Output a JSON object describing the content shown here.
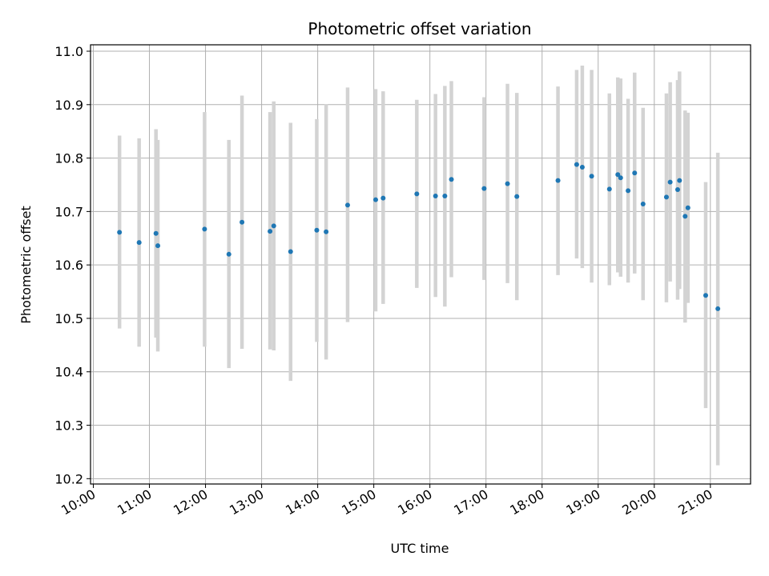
{
  "chart_data": {
    "type": "scatter",
    "title": "Photometric offset variation",
    "xlabel": "UTC time",
    "ylabel": "Photometric offset",
    "x_axis_type": "time",
    "xlim": [
      "09:57",
      "21:43"
    ],
    "ylim": [
      10.19,
      11.012
    ],
    "x_ticks": [
      "10:00",
      "11:00",
      "12:00",
      "13:00",
      "14:00",
      "15:00",
      "16:00",
      "17:00",
      "18:00",
      "19:00",
      "20:00",
      "21:00"
    ],
    "y_ticks": [
      "10.2",
      "10.3",
      "10.4",
      "10.5",
      "10.6",
      "10.7",
      "10.8",
      "10.9",
      "11.0"
    ],
    "grid": true,
    "marker_color": "#1f77b4",
    "errorbar_color": "#d3d3d3",
    "points": [
      {
        "t": "10:28",
        "y": 10.661,
        "lo": 10.481,
        "hi": 10.842
      },
      {
        "t": "10:49",
        "y": 10.642,
        "lo": 10.447,
        "hi": 10.837
      },
      {
        "t": "11:07",
        "y": 10.659,
        "lo": 10.464,
        "hi": 10.854
      },
      {
        "t": "11:09",
        "y": 10.636,
        "lo": 10.438,
        "hi": 10.834
      },
      {
        "t": "11:59",
        "y": 10.667,
        "lo": 10.447,
        "hi": 10.886
      },
      {
        "t": "12:25",
        "y": 10.62,
        "lo": 10.407,
        "hi": 10.834
      },
      {
        "t": "12:39",
        "y": 10.68,
        "lo": 10.443,
        "hi": 10.917
      },
      {
        "t": "13:09",
        "y": 10.663,
        "lo": 10.442,
        "hi": 10.886
      },
      {
        "t": "13:13",
        "y": 10.673,
        "lo": 10.44,
        "hi": 10.906
      },
      {
        "t": "13:31",
        "y": 10.625,
        "lo": 10.383,
        "hi": 10.866
      },
      {
        "t": "13:59",
        "y": 10.665,
        "lo": 10.456,
        "hi": 10.873
      },
      {
        "t": "14:09",
        "y": 10.662,
        "lo": 10.423,
        "hi": 10.901
      },
      {
        "t": "14:32",
        "y": 10.712,
        "lo": 10.493,
        "hi": 10.932
      },
      {
        "t": "15:02",
        "y": 10.722,
        "lo": 10.513,
        "hi": 10.929
      },
      {
        "t": "15:10",
        "y": 10.725,
        "lo": 10.527,
        "hi": 10.925
      },
      {
        "t": "15:46",
        "y": 10.733,
        "lo": 10.557,
        "hi": 10.909
      },
      {
        "t": "16:06",
        "y": 10.729,
        "lo": 10.54,
        "hi": 10.92
      },
      {
        "t": "16:16",
        "y": 10.729,
        "lo": 10.522,
        "hi": 10.935
      },
      {
        "t": "16:23",
        "y": 10.76,
        "lo": 10.577,
        "hi": 10.944
      },
      {
        "t": "16:58",
        "y": 10.743,
        "lo": 10.572,
        "hi": 10.914
      },
      {
        "t": "17:23",
        "y": 10.752,
        "lo": 10.566,
        "hi": 10.939
      },
      {
        "t": "17:33",
        "y": 10.728,
        "lo": 10.534,
        "hi": 10.922
      },
      {
        "t": "18:17",
        "y": 10.758,
        "lo": 10.581,
        "hi": 10.934
      },
      {
        "t": "18:37",
        "y": 10.788,
        "lo": 10.612,
        "hi": 10.965
      },
      {
        "t": "18:43",
        "y": 10.783,
        "lo": 10.594,
        "hi": 10.973
      },
      {
        "t": "18:53",
        "y": 10.766,
        "lo": 10.567,
        "hi": 10.965
      },
      {
        "t": "19:12",
        "y": 10.742,
        "lo": 10.562,
        "hi": 10.921
      },
      {
        "t": "19:21",
        "y": 10.769,
        "lo": 10.586,
        "hi": 10.951
      },
      {
        "t": "19:24",
        "y": 10.763,
        "lo": 10.578,
        "hi": 10.949
      },
      {
        "t": "19:32",
        "y": 10.739,
        "lo": 10.567,
        "hi": 10.911
      },
      {
        "t": "19:39",
        "y": 10.772,
        "lo": 10.584,
        "hi": 10.96
      },
      {
        "t": "19:48",
        "y": 10.714,
        "lo": 10.534,
        "hi": 10.894
      },
      {
        "t": "20:13",
        "y": 10.727,
        "lo": 10.53,
        "hi": 10.921
      },
      {
        "t": "20:17",
        "y": 10.755,
        "lo": 10.569,
        "hi": 10.942
      },
      {
        "t": "20:25",
        "y": 10.741,
        "lo": 10.535,
        "hi": 10.946
      },
      {
        "t": "20:27",
        "y": 10.758,
        "lo": 10.555,
        "hi": 10.962
      },
      {
        "t": "20:33",
        "y": 10.691,
        "lo": 10.492,
        "hi": 10.889
      },
      {
        "t": "20:36",
        "y": 10.707,
        "lo": 10.529,
        "hi": 10.885
      },
      {
        "t": "20:55",
        "y": 10.543,
        "lo": 10.332,
        "hi": 10.755
      },
      {
        "t": "21:08",
        "y": 10.518,
        "lo": 10.225,
        "hi": 10.81
      }
    ]
  }
}
